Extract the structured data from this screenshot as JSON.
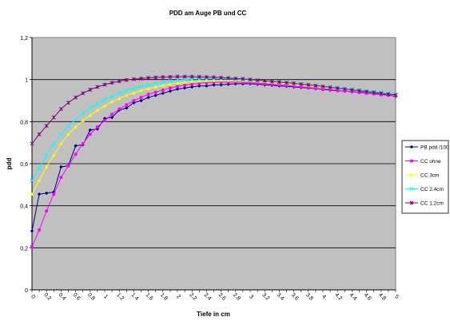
{
  "chart_data": {
    "type": "line",
    "title": "PDD am Auge PB und CC",
    "xlabel": "Tiefe in cm",
    "ylabel": "pdd",
    "ylim": [
      0,
      1.2
    ],
    "yticks": [
      "0",
      "0,2",
      "0,4",
      "0,6",
      "0,8",
      "1",
      "1,2"
    ],
    "x": [
      0,
      0.1,
      0.2,
      0.3,
      0.4,
      0.5,
      0.6,
      0.7,
      0.8,
      0.9,
      1.0,
      1.1,
      1.2,
      1.3,
      1.4,
      1.5,
      1.6,
      1.7,
      1.8,
      1.9,
      2.0,
      2.1,
      2.2,
      2.3,
      2.4,
      2.5,
      2.6,
      2.7,
      2.8,
      2.9,
      3.0,
      3.1,
      3.2,
      3.3,
      3.4,
      3.5,
      3.6,
      3.7,
      3.8,
      3.9,
      4.0,
      4.1,
      4.2,
      4.3,
      4.4,
      4.5,
      4.6,
      4.7,
      4.8,
      4.9,
      5.0
    ],
    "xtick_labels": [
      "0",
      "0.2",
      "0.4",
      "0.6",
      "0.8",
      "1",
      "1.2",
      "1.4",
      "1.6",
      "1.8",
      "2",
      "2.2",
      "2.4",
      "2.6",
      "2.8",
      "3",
      "3.2",
      "3.4",
      "3.6",
      "3.8",
      "4",
      "4.2",
      "4.4",
      "4.6",
      "4.8",
      "5"
    ],
    "grid": true,
    "legend_position": "right",
    "plot_background": "#c0c0c0",
    "series": [
      {
        "name": "PB pdd /100",
        "color": "#000080",
        "marker": "diamond",
        "values": [
          0.28,
          0.455,
          0.46,
          0.465,
          0.585,
          0.59,
          0.685,
          0.69,
          0.76,
          0.765,
          0.815,
          0.82,
          0.855,
          0.865,
          0.89,
          0.9,
          0.915,
          0.925,
          0.935,
          0.945,
          0.955,
          0.96,
          0.965,
          0.97,
          0.97,
          0.975,
          0.975,
          0.978,
          0.98,
          0.98,
          0.98,
          0.978,
          0.975,
          0.973,
          0.97,
          0.968,
          0.965,
          0.962,
          0.96,
          0.957,
          0.953,
          0.95,
          0.947,
          0.945,
          0.942,
          0.94,
          0.937,
          0.933,
          0.93,
          0.927,
          0.92
        ]
      },
      {
        "name": "CC ohne",
        "color": "#ff00ff",
        "marker": "square",
        "values": [
          0.205,
          0.285,
          0.375,
          0.455,
          0.535,
          0.59,
          0.645,
          0.695,
          0.74,
          0.775,
          0.805,
          0.835,
          0.86,
          0.88,
          0.9,
          0.915,
          0.93,
          0.94,
          0.95,
          0.96,
          0.967,
          0.973,
          0.978,
          0.982,
          0.985,
          0.987,
          0.988,
          0.988,
          0.988,
          0.987,
          0.985,
          0.983,
          0.98,
          0.977,
          0.975,
          0.972,
          0.968,
          0.965,
          0.962,
          0.958,
          0.955,
          0.952,
          0.948,
          0.945,
          0.942,
          0.938,
          0.935,
          0.932,
          0.928,
          0.925,
          0.922
        ]
      },
      {
        "name": "CC 3cm",
        "color": "#ffff00",
        "marker": "triangle",
        "values": [
          0.455,
          0.52,
          0.585,
          0.64,
          0.695,
          0.74,
          0.775,
          0.805,
          0.83,
          0.855,
          0.875,
          0.895,
          0.91,
          0.925,
          0.937,
          0.948,
          0.957,
          0.965,
          0.972,
          0.978,
          0.983,
          0.987,
          0.99,
          0.993,
          0.995,
          0.996,
          0.997,
          0.997,
          0.997,
          0.996,
          0.995,
          0.993,
          0.99,
          0.988,
          0.985,
          0.982,
          0.979,
          0.976,
          0.972,
          0.969,
          0.965,
          0.962,
          0.958,
          0.955,
          0.951,
          0.948,
          0.944,
          0.941,
          0.937,
          0.934,
          0.93
        ]
      },
      {
        "name": "CC 2.4cm",
        "color": "#00ffff",
        "marker": "x",
        "values": [
          0.52,
          0.58,
          0.64,
          0.695,
          0.74,
          0.78,
          0.81,
          0.84,
          0.865,
          0.885,
          0.905,
          0.92,
          0.935,
          0.948,
          0.958,
          0.967,
          0.975,
          0.982,
          0.988,
          0.993,
          0.997,
          1.0,
          1.002,
          1.003,
          1.004,
          1.004,
          1.004,
          1.003,
          1.002,
          1.0,
          0.998,
          0.996,
          0.993,
          0.991,
          0.988,
          0.985,
          0.982,
          0.978,
          0.975,
          0.971,
          0.968,
          0.964,
          0.961,
          0.957,
          0.953,
          0.95,
          0.946,
          0.942,
          0.939,
          0.935,
          0.931
        ]
      },
      {
        "name": "CC 1.2cm",
        "color": "#800080",
        "marker": "star",
        "values": [
          0.695,
          0.74,
          0.78,
          0.82,
          0.86,
          0.89,
          0.915,
          0.935,
          0.952,
          0.965,
          0.976,
          0.985,
          0.992,
          0.998,
          1.002,
          1.005,
          1.008,
          1.01,
          1.012,
          1.013,
          1.014,
          1.014,
          1.014,
          1.013,
          1.012,
          1.011,
          1.009,
          1.007,
          1.005,
          1.003,
          1.0,
          0.997,
          0.994,
          0.991,
          0.988,
          0.985,
          0.982,
          0.978,
          0.975,
          0.971,
          0.967,
          0.963,
          0.959,
          0.955,
          0.951,
          0.947,
          0.943,
          0.939,
          0.935,
          0.931,
          0.927
        ]
      }
    ]
  }
}
